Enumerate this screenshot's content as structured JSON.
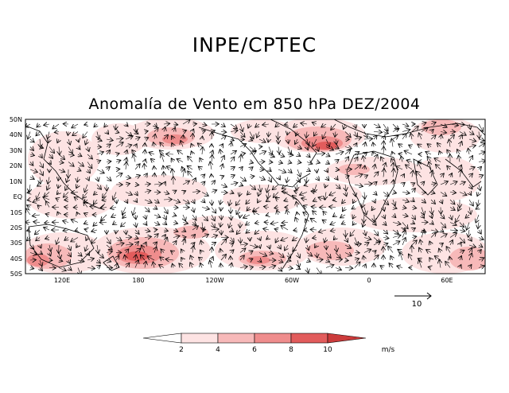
{
  "header": {
    "title": "INPE/CPTEC"
  },
  "map": {
    "title": "Anomalía de Vento em 850 hPa DEZ/2004",
    "lat_labels": [
      "50N",
      "40N",
      "30N",
      "20N",
      "10N",
      "EQ",
      "10S",
      "20S",
      "30S",
      "40S",
      "50S"
    ],
    "lon_labels": [
      "120E",
      "180",
      "120W",
      "60W",
      "0",
      "60E"
    ],
    "ref_vector": {
      "label": "10",
      "units": "m/s"
    }
  },
  "legend": {
    "labels": [
      "2",
      "4",
      "6",
      "8",
      "10"
    ],
    "units": "m/s",
    "colors": [
      "#ffffff",
      "#fde3e3",
      "#f7b9b9",
      "#ef8d8d",
      "#e25c5c",
      "#cc3b3b"
    ]
  }
}
